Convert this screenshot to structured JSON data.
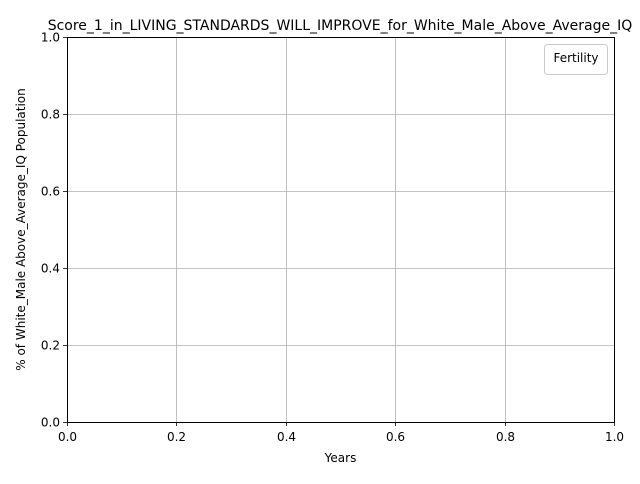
{
  "chart_data": {
    "type": "line",
    "title": "Score_1_in_LIVING_STANDARDS_WILL_IMPROVE_for_White_Male_Above_Average_IQ",
    "xlabel": "Years",
    "ylabel": "% of White_Male Above_Average_IQ Population",
    "xlim": [
      0.0,
      1.0
    ],
    "ylim": [
      0.0,
      1.0
    ],
    "xticks": [
      "0.0",
      "0.2",
      "0.4",
      "0.6",
      "0.8",
      "1.0"
    ],
    "yticks": [
      "0.0",
      "0.2",
      "0.4",
      "0.6",
      "0.8",
      "1.0"
    ],
    "grid": true,
    "legend": {
      "title": "Fertility",
      "placement": "top-right",
      "entries": []
    },
    "series": []
  }
}
